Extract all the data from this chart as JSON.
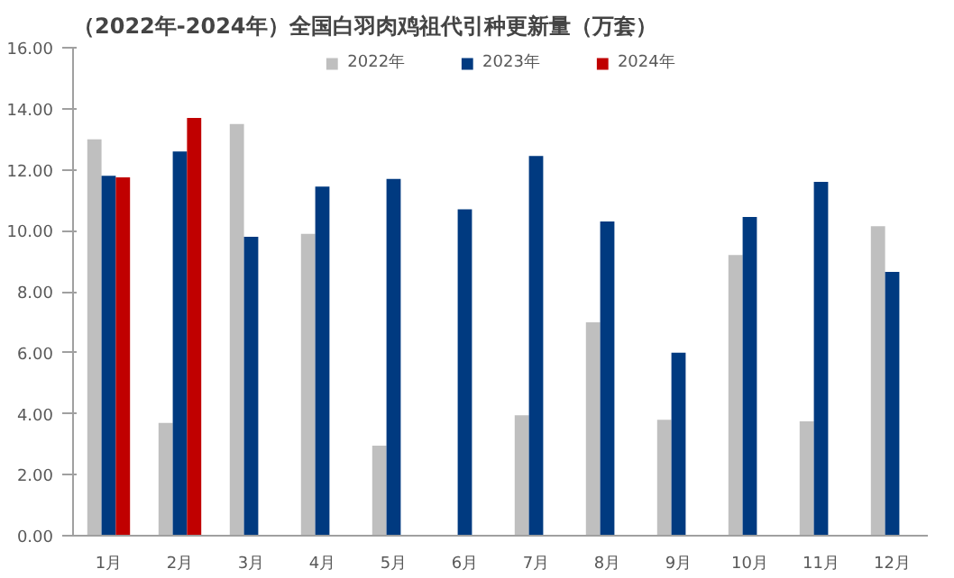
{
  "chart_data": {
    "type": "bar",
    "title": "（2022年-2024年）全国白羽肉鸡祖代引种更新量（万套）",
    "categories": [
      "1月",
      "2月",
      "3月",
      "4月",
      "5月",
      "6月",
      "7月",
      "8月",
      "9月",
      "10月",
      "11月",
      "12月"
    ],
    "series": [
      {
        "name": "2022年",
        "color": "#bfbfbf",
        "values": [
          13.0,
          3.7,
          13.5,
          9.9,
          2.95,
          null,
          3.95,
          7.0,
          3.8,
          9.2,
          3.75,
          10.15
        ]
      },
      {
        "name": "2023年",
        "color": "#003a80",
        "values": [
          11.8,
          12.6,
          9.8,
          11.45,
          11.7,
          10.7,
          12.45,
          10.3,
          6.0,
          10.45,
          11.6,
          8.65
        ]
      },
      {
        "name": "2024年",
        "color": "#c00000",
        "values": [
          11.75,
          13.7,
          null,
          null,
          null,
          null,
          null,
          null,
          null,
          null,
          null,
          null
        ]
      }
    ],
    "ylim": [
      0,
      16
    ],
    "yticks": [
      {
        "value": 0,
        "label": "0.00"
      },
      {
        "value": 2,
        "label": "2.00"
      },
      {
        "value": 4,
        "label": "4.00"
      },
      {
        "value": 6,
        "label": "6.00"
      },
      {
        "value": 8,
        "label": "8.00"
      },
      {
        "value": 10,
        "label": "10.00"
      },
      {
        "value": 12,
        "label": "12.00"
      },
      {
        "value": 14,
        "label": "14.00"
      },
      {
        "value": 16,
        "label": "16.00"
      }
    ],
    "grid": false,
    "legend": "top"
  }
}
